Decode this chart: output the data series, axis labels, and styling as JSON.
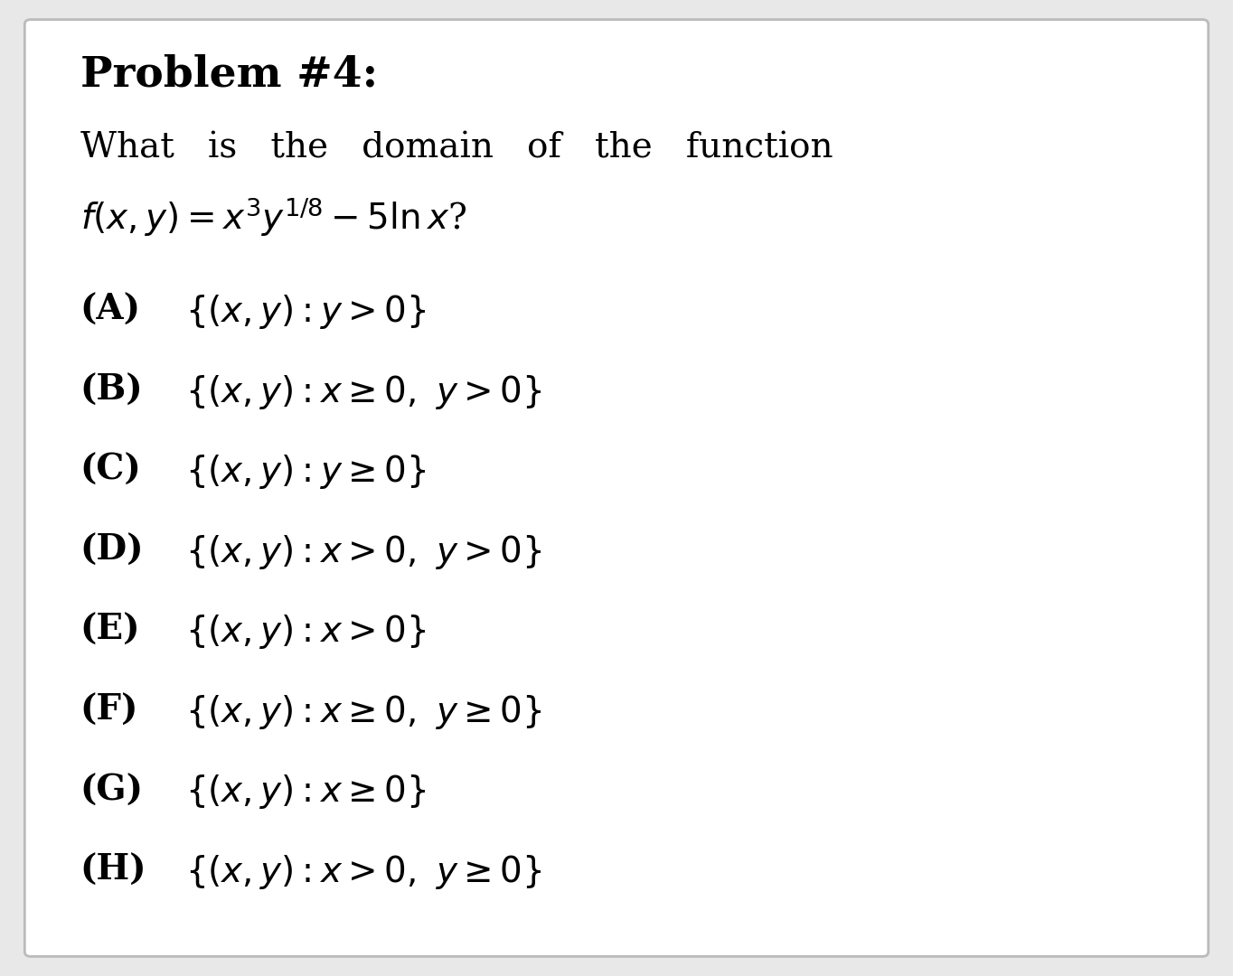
{
  "background_color": "#e8e8e8",
  "panel_color": "#ffffff",
  "panel_edge_color": "#bbbbbb",
  "title": "Problem #4:",
  "title_fontsize": 34,
  "title_fontweight": "bold",
  "question_fontsize": 28,
  "options": [
    [
      "(A)",
      "$\\{(x, y) : y > 0\\}$"
    ],
    [
      "(B)",
      "$\\{(x, y) : x \\geq 0,\\ y > 0\\}$"
    ],
    [
      "(C)",
      "$\\{(x, y) : y \\geq 0\\}$"
    ],
    [
      "(D)",
      "$\\{(x, y) : x > 0,\\ y > 0\\}$"
    ],
    [
      "(E)",
      "$\\{(x, y) : x > 0\\}$"
    ],
    [
      "(F)",
      "$\\{(x, y) : x \\geq 0,\\ y \\geq 0\\}$"
    ],
    [
      "(G)",
      "$\\{(x, y) : x \\geq 0\\}$"
    ],
    [
      "(H)",
      "$\\{(x, y) : x > 0,\\ y \\geq 0\\}$"
    ]
  ],
  "option_fontsize": 28,
  "text_color": "#000000"
}
